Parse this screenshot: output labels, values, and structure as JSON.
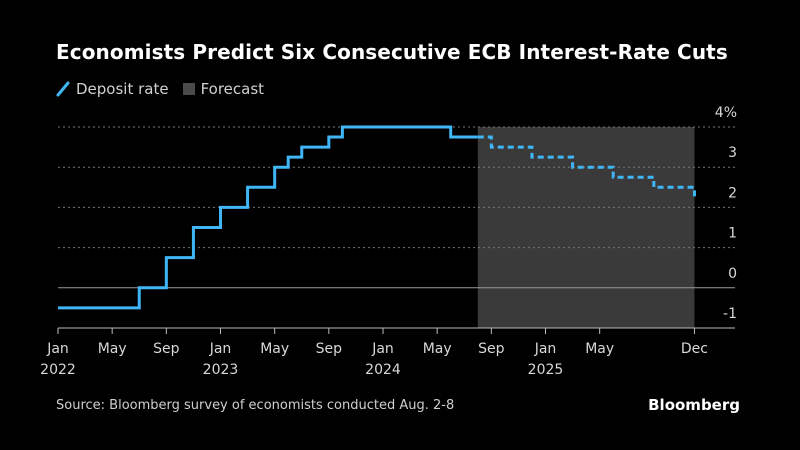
{
  "header": {
    "title": "Economists Predict Six Consecutive ECB Interest-Rate Cuts"
  },
  "legend": {
    "items": [
      {
        "label": "Deposit rate",
        "color": "#3fb6f5",
        "kind": "line"
      },
      {
        "label": "Forecast",
        "color": "#4a4a4a",
        "kind": "box"
      }
    ]
  },
  "footer": {
    "source": "Source: Bloomberg survey of economists conducted Aug. 2-8",
    "brand": "Bloomberg"
  },
  "chart_data": {
    "type": "line",
    "title": "Economists Predict Six Consecutive ECB Interest-Rate Cuts",
    "xlabel": "",
    "ylabel": "",
    "ylim": [
      -1,
      4
    ],
    "y_unit_suffix": "%",
    "y_ticks": [
      -1,
      0,
      1,
      2,
      3,
      4
    ],
    "x_range": [
      "2022-01",
      "2026-01"
    ],
    "x_ticks": [
      {
        "label": "Jan",
        "sub": "2022",
        "date": "2022-01"
      },
      {
        "label": "May",
        "sub": "",
        "date": "2022-05"
      },
      {
        "label": "Sep",
        "sub": "",
        "date": "2022-09"
      },
      {
        "label": "Jan",
        "sub": "2023",
        "date": "2023-01"
      },
      {
        "label": "May",
        "sub": "",
        "date": "2023-05"
      },
      {
        "label": "Sep",
        "sub": "",
        "date": "2023-09"
      },
      {
        "label": "Jan",
        "sub": "2024",
        "date": "2024-01"
      },
      {
        "label": "May",
        "sub": "",
        "date": "2024-05"
      },
      {
        "label": "Sep",
        "sub": "",
        "date": "2024-09"
      },
      {
        "label": "Jan",
        "sub": "2025",
        "date": "2025-01"
      },
      {
        "label": "May",
        "sub": "",
        "date": "2025-05"
      },
      {
        "label": "Dec",
        "sub": "",
        "date": "2025-12"
      }
    ],
    "forecast_region": {
      "start": "2024-08",
      "end": "2025-12",
      "label": "Forecast"
    },
    "series": [
      {
        "name": "Deposit rate",
        "style": "solid",
        "color": "#3fb6f5",
        "steps": [
          {
            "date": "2022-01",
            "value": -0.5
          },
          {
            "date": "2022-07",
            "value": 0.0
          },
          {
            "date": "2022-09",
            "value": 0.75
          },
          {
            "date": "2022-11",
            "value": 1.5
          },
          {
            "date": "2023-01",
            "value": 2.0
          },
          {
            "date": "2023-03",
            "value": 2.5
          },
          {
            "date": "2023-05",
            "value": 3.0
          },
          {
            "date": "2023-06",
            "value": 3.25
          },
          {
            "date": "2023-07",
            "value": 3.5
          },
          {
            "date": "2023-09",
            "value": 3.75
          },
          {
            "date": "2023-10",
            "value": 4.0
          },
          {
            "date": "2024-06",
            "value": 3.75
          },
          {
            "date": "2024-08",
            "value": 3.75
          }
        ]
      },
      {
        "name": "Forecast",
        "style": "dashed",
        "color": "#3fb6f5",
        "steps": [
          {
            "date": "2024-08",
            "value": 3.75
          },
          {
            "date": "2024-09",
            "value": 3.5
          },
          {
            "date": "2024-12",
            "value": 3.25
          },
          {
            "date": "2025-03",
            "value": 3.0
          },
          {
            "date": "2025-06",
            "value": 2.75
          },
          {
            "date": "2025-09",
            "value": 2.5
          },
          {
            "date": "2025-12",
            "value": 2.25
          }
        ]
      }
    ]
  }
}
